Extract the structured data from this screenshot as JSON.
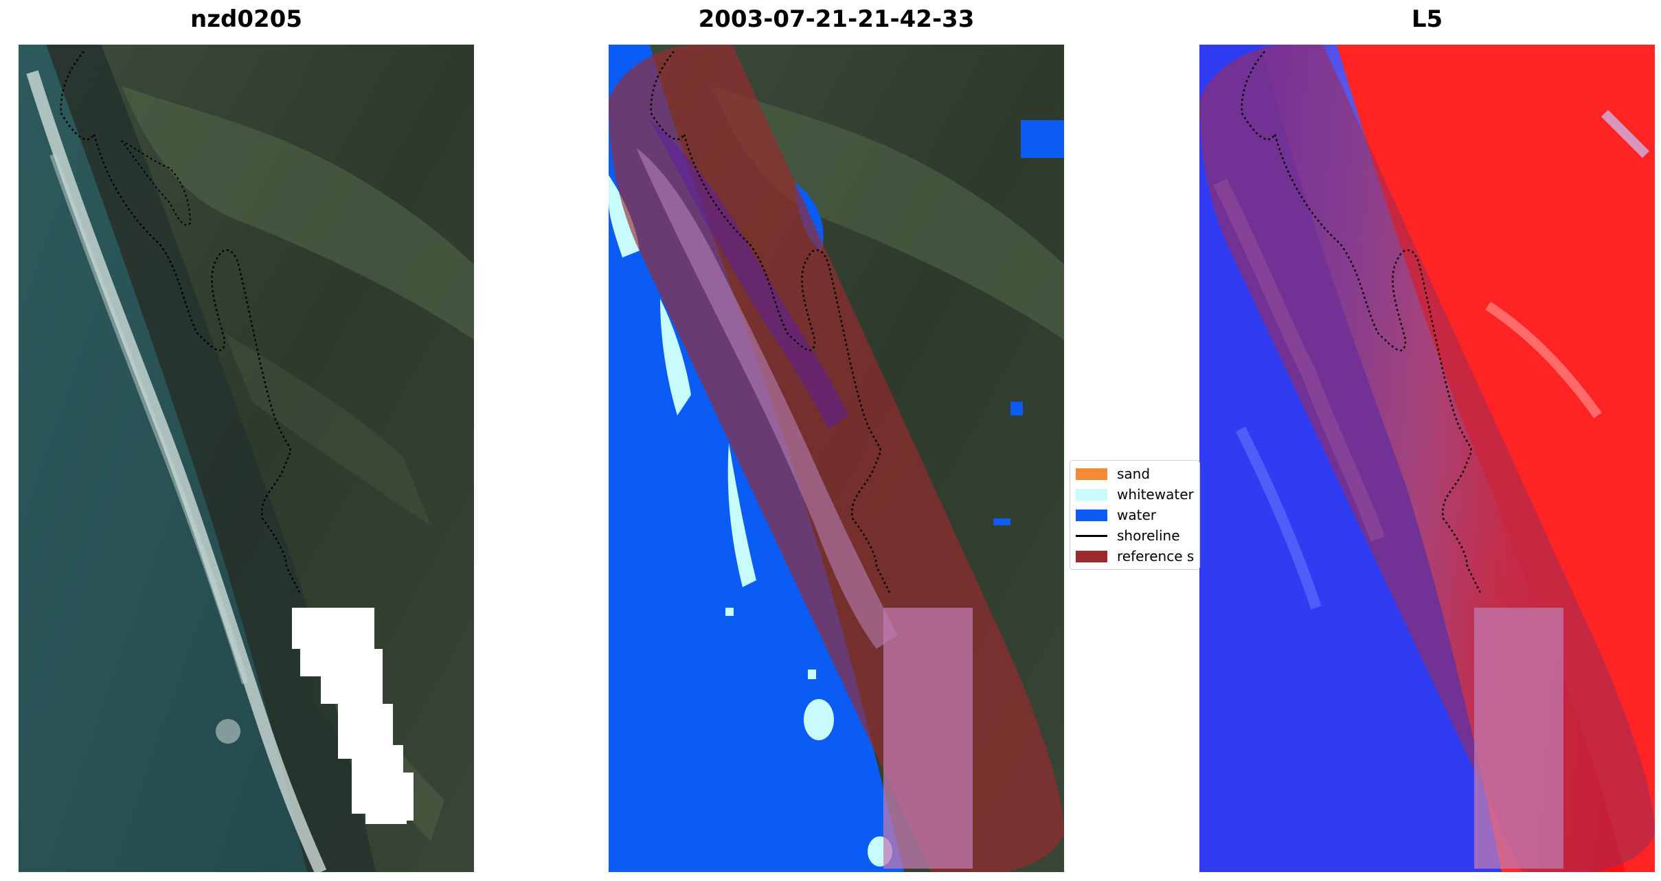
{
  "panels": {
    "left": {
      "title": "nzd0205"
    },
    "middle": {
      "title": "2003-07-21-21-42-33"
    },
    "right": {
      "title": "L5"
    }
  },
  "legend": {
    "items": [
      {
        "label": "sand",
        "color": "#f58a36",
        "kind": "patch"
      },
      {
        "label": "whitewater",
        "color": "#c8fcfc",
        "kind": "patch"
      },
      {
        "label": "water",
        "color": "#0a5cf5",
        "kind": "patch"
      },
      {
        "label": "shoreline",
        "color": "#000000",
        "kind": "line"
      },
      {
        "label": "reference s",
        "color": "#9b2a2d",
        "kind": "patch"
      }
    ]
  }
}
